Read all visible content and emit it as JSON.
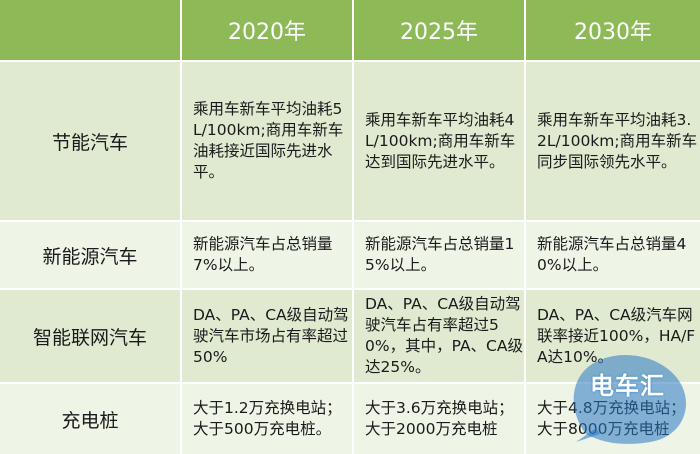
{
  "header": {
    "corner": "",
    "col1": "2020年",
    "col2": "2025年",
    "col3": "2030年"
  },
  "rows": [
    {
      "label": "节能汽车",
      "c1": "乘用车新车平均油耗5L/100km;商用车新车油耗接近国际先进水平。",
      "c2": "乘用车新车平均油耗4L/100km;商用车新车达到国际先进水平。",
      "c3": "乘用车新车平均油耗3.2L/100km;商用车新车同步国际领先水平。"
    },
    {
      "label": "新能源汽车",
      "c1": "新能源汽车占总销量7%以上。",
      "c2": "新能源汽车占总销量15%以上。",
      "c3": "新能源汽车占总销量40%以上。"
    },
    {
      "label": "智能联网汽车",
      "c1": "DA、PA、CA级自动驾驶汽车市场占有率超过50%",
      "c2": "DA、PA、CA级自动驾驶汽车占有率超过50%，其中，PA、CA级达25%。",
      "c3": "DA、PA、CA级汽车网联率接近100%，HA/FA达10%。"
    },
    {
      "label": "充电桩",
      "c1": "大于1.2万充换电站；大于500万充电桩。",
      "c2": "大于3.6万充换电站；大于2000万充电桩",
      "c3": "大于4.8万充换电站；大于8000万充电桩"
    }
  ],
  "watermark": {
    "text": "电车汇",
    "color": "#2a78c4"
  }
}
